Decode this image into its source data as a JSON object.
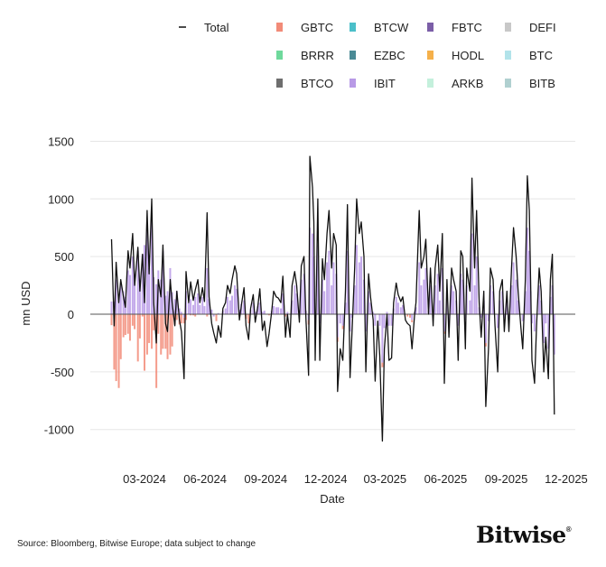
{
  "chart_data": {
    "type": "bar",
    "xlabel": "Date",
    "ylabel": "mn USD",
    "ylim": [
      -1150,
      1550
    ],
    "yticks": [
      1500,
      1000,
      500,
      0,
      -500,
      -1000
    ],
    "xticks": [
      "03-2024",
      "06-2024",
      "09-2024",
      "12-2024",
      "03-2025",
      "06-2025",
      "09-2025",
      "12-2025"
    ],
    "grid": true,
    "legend_position": "top",
    "legend": [
      {
        "name": "Total",
        "kind": "line",
        "color": "#111111"
      },
      {
        "name": "GBTC",
        "color": "#f28b78"
      },
      {
        "name": "BTCW",
        "color": "#4bbfc9"
      },
      {
        "name": "FBTC",
        "color": "#7b5ea7"
      },
      {
        "name": "DEFI",
        "color": "#c8c8c8"
      },
      {
        "name": "BRRR",
        "color": "#6fd99c"
      },
      {
        "name": "EZBC",
        "color": "#4a8a95"
      },
      {
        "name": "HODL",
        "color": "#f5b04a"
      },
      {
        "name": "BTC",
        "color": "#b2e3ea"
      },
      {
        "name": "BTCO",
        "color": "#6e6e6e"
      },
      {
        "name": "IBIT",
        "color": "#b89ae6"
      },
      {
        "name": "ARKB",
        "color": "#c4f0dc"
      },
      {
        "name": "BITB",
        "color": "#b0d0d0"
      }
    ],
    "columns": [
      "Date",
      "Total",
      "IBIT",
      "GBTC"
    ],
    "rows": [
      [
        "2024-01-11",
        650,
        110,
        -95
      ],
      [
        "2024-01-15",
        -100,
        110,
        -480
      ],
      [
        "2024-01-18",
        450,
        300,
        -580
      ],
      [
        "2024-01-22",
        100,
        160,
        -640
      ],
      [
        "2024-01-25",
        300,
        250,
        -390
      ],
      [
        "2024-01-29",
        150,
        200,
        -200
      ],
      [
        "2024-02-01",
        60,
        150,
        -180
      ],
      [
        "2024-02-05",
        550,
        380,
        -170
      ],
      [
        "2024-02-08",
        400,
        340,
        -230
      ],
      [
        "2024-02-12",
        700,
        500,
        -100
      ],
      [
        "2024-02-15",
        250,
        350,
        -130
      ],
      [
        "2024-02-20",
        580,
        550,
        -410
      ],
      [
        "2024-02-23",
        200,
        300,
        -210
      ],
      [
        "2024-02-27",
        520,
        520,
        -20
      ],
      [
        "2024-03-01",
        100,
        600,
        -490
      ],
      [
        "2024-03-05",
        900,
        780,
        -350
      ],
      [
        "2024-03-08",
        350,
        400,
        -250
      ],
      [
        "2024-03-12",
        1000,
        850,
        -300
      ],
      [
        "2024-03-15",
        100,
        320,
        -140
      ],
      [
        "2024-03-19",
        -250,
        260,
        -640
      ],
      [
        "2024-03-22",
        300,
        380,
        -170
      ],
      [
        "2024-03-26",
        150,
        300,
        -350
      ],
      [
        "2024-03-29",
        600,
        550,
        -300
      ],
      [
        "2024-04-02",
        -80,
        160,
        -300
      ],
      [
        "2024-04-05",
        -150,
        200,
        -390
      ],
      [
        "2024-04-09",
        300,
        400,
        -350
      ],
      [
        "2024-04-12",
        100,
        190,
        -280
      ],
      [
        "2024-04-16",
        -100,
        130,
        -90
      ],
      [
        "2024-04-19",
        200,
        200,
        -50
      ],
      [
        "2024-04-23",
        -50,
        50,
        -90
      ],
      [
        "2024-04-26",
        -150,
        20,
        -80
      ],
      [
        "2024-04-30",
        -560,
        -30,
        -50
      ],
      [
        "2024-05-03",
        370,
        200,
        -50
      ],
      [
        "2024-05-07",
        100,
        100,
        0
      ],
      [
        "2024-05-10",
        280,
        130,
        -10
      ],
      [
        "2024-05-14",
        120,
        80,
        -10
      ],
      [
        "2024-05-17",
        210,
        150,
        -20
      ],
      [
        "2024-05-21",
        300,
        180,
        0
      ],
      [
        "2024-05-24",
        100,
        80,
        0
      ],
      [
        "2024-05-28",
        230,
        150,
        0
      ],
      [
        "2024-05-31",
        110,
        70,
        0
      ],
      [
        "2024-06-04",
        880,
        400,
        -20
      ],
      [
        "2024-06-07",
        150,
        130,
        0
      ],
      [
        "2024-06-11",
        -80,
        40,
        0
      ],
      [
        "2024-06-14",
        -160,
        -20,
        0
      ],
      [
        "2024-06-18",
        -250,
        0,
        -60
      ],
      [
        "2024-06-21",
        -100,
        10,
        0
      ],
      [
        "2024-06-25",
        -200,
        0,
        0
      ],
      [
        "2024-06-28",
        50,
        30,
        0
      ],
      [
        "2024-07-02",
        100,
        50,
        0
      ],
      [
        "2024-07-05",
        250,
        150,
        0
      ],
      [
        "2024-07-09",
        180,
        120,
        0
      ],
      [
        "2024-07-12",
        300,
        160,
        0
      ],
      [
        "2024-07-16",
        420,
        250,
        0
      ],
      [
        "2024-07-19",
        350,
        220,
        0
      ],
      [
        "2024-07-23",
        -50,
        40,
        -20
      ],
      [
        "2024-07-26",
        80,
        90,
        0
      ],
      [
        "2024-07-30",
        230,
        120,
        0
      ],
      [
        "2024-08-02",
        -100,
        0,
        -40
      ],
      [
        "2024-08-06",
        -220,
        0,
        -80
      ],
      [
        "2024-08-09",
        50,
        40,
        0
      ],
      [
        "2024-08-13",
        170,
        100,
        0
      ],
      [
        "2024-08-16",
        -70,
        20,
        0
      ],
      [
        "2024-08-20",
        70,
        70,
        0
      ],
      [
        "2024-08-23",
        220,
        100,
        0
      ],
      [
        "2024-08-27",
        -140,
        20,
        0
      ],
      [
        "2024-08-30",
        -60,
        30,
        0
      ],
      [
        "2024-09-03",
        -280,
        0,
        0
      ],
      [
        "2024-09-06",
        -170,
        0,
        -10
      ],
      [
        "2024-09-10",
        20,
        30,
        0
      ],
      [
        "2024-09-13",
        200,
        70,
        0
      ],
      [
        "2024-09-17",
        150,
        60,
        0
      ],
      [
        "2024-09-20",
        140,
        60,
        0
      ],
      [
        "2024-09-24",
        100,
        50,
        0
      ],
      [
        "2024-09-27",
        330,
        180,
        0
      ],
      [
        "2024-10-01",
        -200,
        0,
        -20
      ],
      [
        "2024-10-04",
        0,
        20,
        0
      ],
      [
        "2024-10-08",
        -200,
        0,
        0
      ],
      [
        "2024-10-11",
        250,
        120,
        0
      ],
      [
        "2024-10-15",
        370,
        250,
        0
      ],
      [
        "2024-10-18",
        250,
        180,
        0
      ],
      [
        "2024-10-22",
        -70,
        30,
        0
      ],
      [
        "2024-10-25",
        420,
        300,
        0
      ],
      [
        "2024-10-29",
        500,
        350,
        0
      ],
      [
        "2024-11-01",
        -50,
        30,
        0
      ],
      [
        "2024-11-05",
        -530,
        -50,
        -40
      ],
      [
        "2024-11-07",
        1370,
        750,
        0
      ],
      [
        "2024-11-11",
        1100,
        700,
        0
      ],
      [
        "2024-11-13",
        800,
        500,
        0
      ],
      [
        "2024-11-15",
        -400,
        -100,
        -30
      ],
      [
        "2024-11-19",
        1000,
        600,
        0
      ],
      [
        "2024-11-22",
        -400,
        -80,
        0
      ],
      [
        "2024-11-26",
        480,
        300,
        0
      ],
      [
        "2024-11-29",
        300,
        200,
        0
      ],
      [
        "2024-12-03",
        700,
        450,
        0
      ],
      [
        "2024-12-06",
        900,
        550,
        0
      ],
      [
        "2024-12-10",
        400,
        250,
        0
      ],
      [
        "2024-12-13",
        700,
        450,
        0
      ],
      [
        "2024-12-17",
        600,
        350,
        0
      ],
      [
        "2024-12-19",
        -670,
        -200,
        -40
      ],
      [
        "2024-12-23",
        -300,
        -80,
        0
      ],
      [
        "2024-12-27",
        -400,
        -100,
        -30
      ],
      [
        "2024-12-31",
        200,
        100,
        0
      ],
      [
        "2025-01-03",
        950,
        550,
        0
      ],
      [
        "2025-01-07",
        -550,
        -150,
        0
      ],
      [
        "2025-01-10",
        -150,
        -30,
        0
      ],
      [
        "2025-01-14",
        400,
        250,
        0
      ],
      [
        "2025-01-17",
        1000,
        600,
        0
      ],
      [
        "2025-01-21",
        700,
        450,
        0
      ],
      [
        "2025-01-24",
        800,
        500,
        0
      ],
      [
        "2025-01-28",
        500,
        300,
        0
      ],
      [
        "2025-01-31",
        -500,
        -150,
        0
      ],
      [
        "2025-02-04",
        350,
        200,
        0
      ],
      [
        "2025-02-07",
        150,
        100,
        0
      ],
      [
        "2025-02-11",
        -50,
        20,
        0
      ],
      [
        "2025-02-14",
        -580,
        -100,
        0
      ],
      [
        "2025-02-18",
        -60,
        0,
        0
      ],
      [
        "2025-02-21",
        -360,
        -100,
        0
      ],
      [
        "2025-02-25",
        -1100,
        -420,
        -40
      ],
      [
        "2025-02-28",
        -300,
        -120,
        0
      ],
      [
        "2025-03-04",
        0,
        20,
        0
      ],
      [
        "2025-03-07",
        -400,
        -100,
        0
      ],
      [
        "2025-03-11",
        -380,
        -100,
        0
      ],
      [
        "2025-03-14",
        100,
        50,
        0
      ],
      [
        "2025-03-18",
        270,
        150,
        0
      ],
      [
        "2025-03-21",
        170,
        100,
        0
      ],
      [
        "2025-03-25",
        110,
        60,
        0
      ],
      [
        "2025-03-28",
        150,
        80,
        0
      ],
      [
        "2025-04-01",
        -50,
        0,
        0
      ],
      [
        "2025-04-04",
        -80,
        0,
        -20
      ],
      [
        "2025-04-08",
        -100,
        0,
        -30
      ],
      [
        "2025-04-11",
        -300,
        -50,
        -20
      ],
      [
        "2025-04-15",
        0,
        20,
        0
      ],
      [
        "2025-04-17",
        100,
        60,
        0
      ],
      [
        "2025-04-22",
        900,
        450,
        0
      ],
      [
        "2025-04-25",
        400,
        250,
        0
      ],
      [
        "2025-04-29",
        500,
        300,
        0
      ],
      [
        "2025-05-02",
        650,
        400,
        0
      ],
      [
        "2025-05-06",
        0,
        30,
        0
      ],
      [
        "2025-05-09",
        400,
        250,
        0
      ],
      [
        "2025-05-13",
        -100,
        0,
        0
      ],
      [
        "2025-05-16",
        400,
        250,
        0
      ],
      [
        "2025-05-20",
        600,
        350,
        0
      ],
      [
        "2025-05-23",
        200,
        120,
        0
      ],
      [
        "2025-05-27",
        700,
        400,
        0
      ],
      [
        "2025-05-30",
        -600,
        -150,
        -20
      ],
      [
        "2025-06-03",
        300,
        200,
        0
      ],
      [
        "2025-06-06",
        -200,
        -50,
        0
      ],
      [
        "2025-06-10",
        400,
        250,
        0
      ],
      [
        "2025-06-13",
        300,
        200,
        0
      ],
      [
        "2025-06-17",
        200,
        120,
        0
      ],
      [
        "2025-06-20",
        -400,
        -100,
        0
      ],
      [
        "2025-06-24",
        550,
        350,
        0
      ],
      [
        "2025-06-27",
        500,
        300,
        0
      ],
      [
        "2025-07-01",
        -300,
        -50,
        0
      ],
      [
        "2025-07-03",
        400,
        250,
        0
      ],
      [
        "2025-07-08",
        200,
        120,
        0
      ],
      [
        "2025-07-11",
        1180,
        700,
        0
      ],
      [
        "2025-07-15",
        400,
        250,
        0
      ],
      [
        "2025-07-18",
        900,
        500,
        0
      ],
      [
        "2025-07-22",
        100,
        60,
        0
      ],
      [
        "2025-07-25",
        -200,
        -30,
        0
      ],
      [
        "2025-07-29",
        200,
        120,
        0
      ],
      [
        "2025-08-01",
        -800,
        -250,
        -30
      ],
      [
        "2025-08-05",
        -300,
        -60,
        0
      ],
      [
        "2025-08-08",
        400,
        250,
        0
      ],
      [
        "2025-08-12",
        300,
        200,
        0
      ],
      [
        "2025-08-15",
        -100,
        0,
        0
      ],
      [
        "2025-08-19",
        -500,
        -120,
        0
      ],
      [
        "2025-08-22",
        200,
        120,
        0
      ],
      [
        "2025-08-26",
        300,
        200,
        0
      ],
      [
        "2025-08-29",
        -150,
        -30,
        0
      ],
      [
        "2025-09-02",
        200,
        120,
        0
      ],
      [
        "2025-09-05",
        -150,
        -30,
        0
      ],
      [
        "2025-09-09",
        400,
        250,
        0
      ],
      [
        "2025-09-12",
        750,
        450,
        0
      ],
      [
        "2025-09-16",
        500,
        300,
        0
      ],
      [
        "2025-09-19",
        200,
        120,
        0
      ],
      [
        "2025-09-23",
        -100,
        0,
        0
      ],
      [
        "2025-09-26",
        -300,
        -60,
        0
      ],
      [
        "2025-09-30",
        300,
        200,
        0
      ],
      [
        "2025-10-03",
        1200,
        750,
        0
      ],
      [
        "2025-10-06",
        900,
        550,
        0
      ],
      [
        "2025-10-08",
        300,
        200,
        0
      ],
      [
        "2025-10-10",
        -400,
        -80,
        0
      ],
      [
        "2025-10-14",
        -600,
        -150,
        0
      ],
      [
        "2025-10-17",
        -100,
        0,
        0
      ],
      [
        "2025-10-21",
        400,
        250,
        0
      ],
      [
        "2025-10-24",
        200,
        120,
        0
      ],
      [
        "2025-10-28",
        -500,
        -250,
        0
      ],
      [
        "2025-10-31",
        -200,
        -80,
        0
      ],
      [
        "2025-11-04",
        -560,
        -300,
        0
      ],
      [
        "2025-11-07",
        300,
        150,
        0
      ],
      [
        "2025-11-10",
        520,
        250,
        0
      ],
      [
        "2025-11-13",
        -870,
        -350,
        0
      ]
    ]
  },
  "footer": {
    "source": "Source: Bloomberg, Bitwise Europe; data subject to change",
    "logo": "Bitwise",
    "logo_mark": "®"
  }
}
